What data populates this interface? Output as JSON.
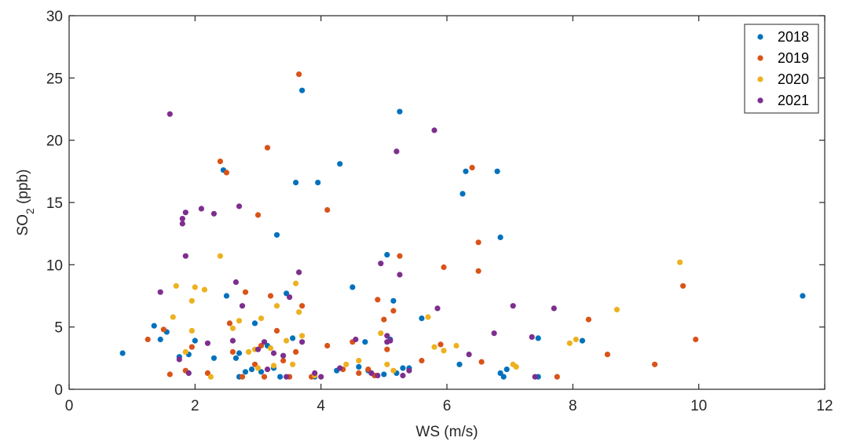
{
  "chart_data": {
    "type": "scatter",
    "xlabel": "WS (m/s)",
    "ylabel": {
      "base": "SO",
      "sub": "2",
      "rest": " (ppb)"
    },
    "xlim": [
      0,
      12
    ],
    "ylim": [
      0,
      30
    ],
    "xticks": [
      "0",
      "2",
      "4",
      "6",
      "8",
      "10",
      "12"
    ],
    "yticks": [
      "0",
      "5",
      "10",
      "15",
      "20",
      "25",
      "30"
    ],
    "grid": false,
    "legend_position": "top-right",
    "series": [
      {
        "name": "2018",
        "color": "#0072BD",
        "points": [
          [
            0.85,
            2.9
          ],
          [
            1.35,
            5.1
          ],
          [
            1.45,
            4.0
          ],
          [
            1.55,
            4.6
          ],
          [
            1.75,
            2.6
          ],
          [
            1.9,
            2.8
          ],
          [
            2.0,
            3.9
          ],
          [
            2.3,
            2.5
          ],
          [
            2.45,
            17.6
          ],
          [
            2.5,
            7.5
          ],
          [
            2.65,
            2.5
          ],
          [
            2.7,
            2.9
          ],
          [
            2.7,
            1.0
          ],
          [
            2.8,
            1.4
          ],
          [
            2.9,
            1.6
          ],
          [
            2.95,
            5.3
          ],
          [
            3.05,
            1.4
          ],
          [
            3.15,
            3.5
          ],
          [
            3.25,
            1.7
          ],
          [
            3.3,
            12.4
          ],
          [
            3.35,
            1.0
          ],
          [
            3.45,
            7.7
          ],
          [
            3.55,
            4.1
          ],
          [
            3.6,
            16.6
          ],
          [
            3.7,
            24.0
          ],
          [
            3.9,
            1.0
          ],
          [
            3.95,
            16.6
          ],
          [
            4.25,
            1.5
          ],
          [
            4.3,
            18.1
          ],
          [
            4.5,
            8.2
          ],
          [
            4.6,
            1.8
          ],
          [
            4.7,
            3.8
          ],
          [
            4.75,
            1.5
          ],
          [
            5.0,
            1.2
          ],
          [
            5.05,
            10.8
          ],
          [
            5.1,
            4.0
          ],
          [
            5.15,
            7.1
          ],
          [
            5.2,
            1.3
          ],
          [
            5.25,
            22.3
          ],
          [
            5.3,
            1.7
          ],
          [
            5.4,
            1.7
          ],
          [
            5.6,
            5.7
          ],
          [
            6.2,
            2.0
          ],
          [
            6.25,
            15.7
          ],
          [
            6.3,
            17.5
          ],
          [
            6.8,
            17.5
          ],
          [
            6.85,
            12.2
          ],
          [
            6.85,
            1.3
          ],
          [
            6.9,
            1.0
          ],
          [
            6.95,
            1.6
          ],
          [
            7.45,
            4.1
          ],
          [
            7.45,
            1.0
          ],
          [
            8.15,
            3.9
          ],
          [
            11.65,
            7.5
          ]
        ]
      },
      {
        "name": "2019",
        "color": "#D95319",
        "points": [
          [
            1.25,
            4.0
          ],
          [
            1.5,
            4.8
          ],
          [
            1.6,
            1.2
          ],
          [
            1.85,
            1.5
          ],
          [
            1.95,
            3.4
          ],
          [
            2.2,
            1.3
          ],
          [
            2.4,
            18.3
          ],
          [
            2.5,
            17.4
          ],
          [
            2.55,
            5.3
          ],
          [
            2.6,
            3.0
          ],
          [
            2.75,
            1.0
          ],
          [
            2.8,
            7.8
          ],
          [
            2.95,
            2.0
          ],
          [
            3.0,
            14.0
          ],
          [
            3.05,
            3.5
          ],
          [
            3.1,
            1.0
          ],
          [
            3.15,
            19.4
          ],
          [
            3.2,
            7.5
          ],
          [
            3.3,
            4.7
          ],
          [
            3.4,
            2.3
          ],
          [
            3.5,
            1.0
          ],
          [
            3.6,
            3.0
          ],
          [
            3.65,
            25.3
          ],
          [
            3.7,
            6.7
          ],
          [
            3.85,
            1.0
          ],
          [
            4.1,
            14.4
          ],
          [
            4.1,
            3.5
          ],
          [
            4.35,
            1.6
          ],
          [
            4.5,
            3.8
          ],
          [
            4.6,
            1.3
          ],
          [
            4.75,
            1.6
          ],
          [
            4.85,
            1.1
          ],
          [
            4.9,
            7.2
          ],
          [
            5.0,
            5.6
          ],
          [
            5.05,
            3.2
          ],
          [
            5.15,
            6.3
          ],
          [
            5.25,
            10.7
          ],
          [
            5.6,
            2.3
          ],
          [
            5.9,
            3.6
          ],
          [
            5.95,
            9.8
          ],
          [
            6.4,
            17.8
          ],
          [
            6.5,
            11.8
          ],
          [
            6.5,
            9.5
          ],
          [
            6.55,
            2.2
          ],
          [
            7.75,
            1.0
          ],
          [
            8.25,
            5.6
          ],
          [
            8.55,
            2.8
          ],
          [
            9.3,
            2.0
          ],
          [
            9.75,
            8.3
          ],
          [
            9.95,
            4.0
          ]
        ]
      },
      {
        "name": "2020",
        "color": "#EDB120",
        "points": [
          [
            1.65,
            5.8
          ],
          [
            1.7,
            8.3
          ],
          [
            1.85,
            3.0
          ],
          [
            1.95,
            7.1
          ],
          [
            1.95,
            4.7
          ],
          [
            2.0,
            8.2
          ],
          [
            2.15,
            8.0
          ],
          [
            2.25,
            1.0
          ],
          [
            2.4,
            10.7
          ],
          [
            2.6,
            4.9
          ],
          [
            2.7,
            5.5
          ],
          [
            2.85,
            3.0
          ],
          [
            2.95,
            3.2
          ],
          [
            3.0,
            1.7
          ],
          [
            3.05,
            5.7
          ],
          [
            3.2,
            3.3
          ],
          [
            3.25,
            1.9
          ],
          [
            3.3,
            6.7
          ],
          [
            3.45,
            3.9
          ],
          [
            3.55,
            2.0
          ],
          [
            3.6,
            8.5
          ],
          [
            3.65,
            6.2
          ],
          [
            3.7,
            4.3
          ],
          [
            3.9,
            1.1
          ],
          [
            4.4,
            2.0
          ],
          [
            4.6,
            2.3
          ],
          [
            4.95,
            4.5
          ],
          [
            5.05,
            2.0
          ],
          [
            5.15,
            1.5
          ],
          [
            5.7,
            5.8
          ],
          [
            5.8,
            3.4
          ],
          [
            5.95,
            3.1
          ],
          [
            6.15,
            3.5
          ],
          [
            7.05,
            2.0
          ],
          [
            7.1,
            1.8
          ],
          [
            7.95,
            3.7
          ],
          [
            8.05,
            4.0
          ],
          [
            8.7,
            6.4
          ],
          [
            9.7,
            10.2
          ]
        ]
      },
      {
        "name": "2021",
        "color": "#7E2F8E",
        "points": [
          [
            1.45,
            7.8
          ],
          [
            1.6,
            22.1
          ],
          [
            1.75,
            2.4
          ],
          [
            1.8,
            13.7
          ],
          [
            1.8,
            13.3
          ],
          [
            1.85,
            14.2
          ],
          [
            1.85,
            10.7
          ],
          [
            1.9,
            1.3
          ],
          [
            2.1,
            14.5
          ],
          [
            2.2,
            3.7
          ],
          [
            2.3,
            14.1
          ],
          [
            2.6,
            3.9
          ],
          [
            2.65,
            8.6
          ],
          [
            2.7,
            14.7
          ],
          [
            2.75,
            6.7
          ],
          [
            3.0,
            3.2
          ],
          [
            3.1,
            3.8
          ],
          [
            3.15,
            1.6
          ],
          [
            3.25,
            2.9
          ],
          [
            3.4,
            2.7
          ],
          [
            3.45,
            1.0
          ],
          [
            3.5,
            7.4
          ],
          [
            3.65,
            9.4
          ],
          [
            3.7,
            3.8
          ],
          [
            3.9,
            1.3
          ],
          [
            4.0,
            1.0
          ],
          [
            4.3,
            1.7
          ],
          [
            4.55,
            4.0
          ],
          [
            4.8,
            1.3
          ],
          [
            4.9,
            1.1
          ],
          [
            4.95,
            10.1
          ],
          [
            5.05,
            4.3
          ],
          [
            5.05,
            3.8
          ],
          [
            5.1,
            3.9
          ],
          [
            5.2,
            19.1
          ],
          [
            5.25,
            9.2
          ],
          [
            5.3,
            1.1
          ],
          [
            5.4,
            1.5
          ],
          [
            5.8,
            20.8
          ],
          [
            5.85,
            6.5
          ],
          [
            6.35,
            2.8
          ],
          [
            6.75,
            4.5
          ],
          [
            7.05,
            6.7
          ],
          [
            7.35,
            4.2
          ],
          [
            7.4,
            1.0
          ],
          [
            7.7,
            6.5
          ]
        ]
      }
    ]
  }
}
